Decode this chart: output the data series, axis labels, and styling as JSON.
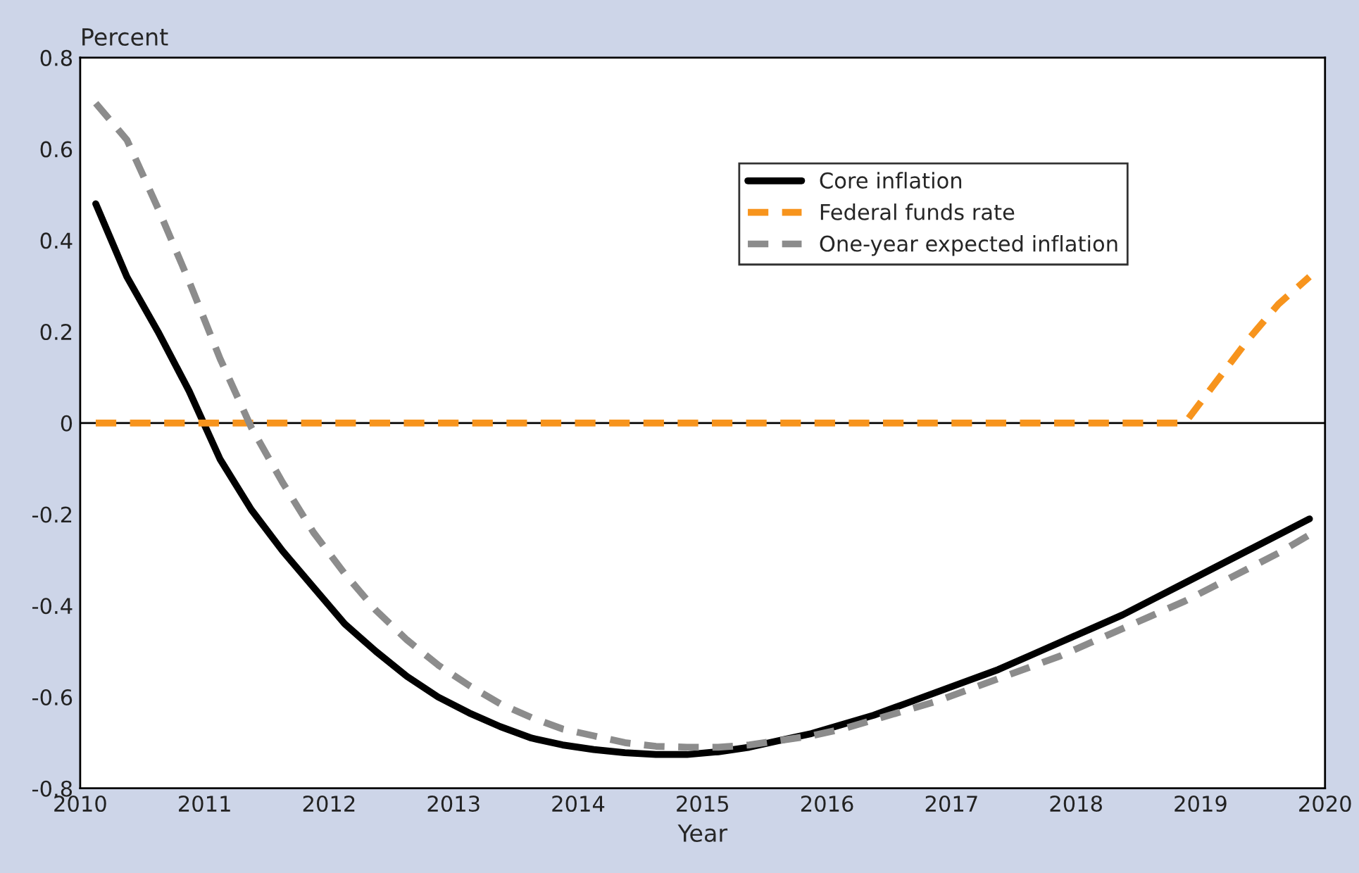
{
  "chart_data": {
    "type": "line",
    "xlabel": "Year",
    "ylabel": "Percent",
    "xlim": [
      2010,
      2020
    ],
    "xticks": [
      2010,
      2011,
      2012,
      2013,
      2014,
      2015,
      2016,
      2017,
      2018,
      2019,
      2020
    ],
    "ylim": [
      -0.8,
      0.8
    ],
    "yticks": [
      -0.8,
      -0.6,
      -0.4,
      -0.2,
      0,
      0.2,
      0.4,
      0.6,
      0.8
    ],
    "grid": false,
    "legend": "top right",
    "ref_lines": [
      {
        "axis": "y",
        "value": 0,
        "color": "#000000",
        "line_style": "solid"
      }
    ],
    "series": [
      {
        "name": "Core inflation",
        "color": "#000000",
        "line_style": "solid",
        "x": [
          2010.125,
          2010.375,
          2010.625,
          2010.875,
          2011.125,
          2011.375,
          2011.625,
          2011.875,
          2012.125,
          2012.375,
          2012.625,
          2012.875,
          2013.125,
          2013.375,
          2013.625,
          2013.875,
          2014.125,
          2014.375,
          2014.625,
          2014.875,
          2015.125,
          2015.375,
          2015.625,
          2015.875,
          2016.125,
          2016.375,
          2016.625,
          2016.875,
          2017.125,
          2017.375,
          2017.625,
          2017.875,
          2018.125,
          2018.375,
          2018.625,
          2018.875,
          2019.125,
          2019.375,
          2019.625,
          2019.875
        ],
        "values": [
          0.48,
          0.32,
          0.2,
          0.07,
          -0.08,
          -0.19,
          -0.28,
          -0.36,
          -0.44,
          -0.5,
          -0.555,
          -0.6,
          -0.635,
          -0.665,
          -0.69,
          -0.705,
          -0.715,
          -0.722,
          -0.726,
          -0.726,
          -0.72,
          -0.71,
          -0.695,
          -0.68,
          -0.66,
          -0.64,
          -0.615,
          -0.59,
          -0.565,
          -0.54,
          -0.51,
          -0.48,
          -0.45,
          -0.42,
          -0.385,
          -0.35,
          -0.315,
          -0.28,
          -0.245,
          -0.21
        ]
      },
      {
        "name": "Federal funds rate",
        "color": "#f7941d",
        "line_style": "dashed",
        "x": [
          2010.125,
          2011.125,
          2012.125,
          2013.125,
          2014.125,
          2015.125,
          2016.125,
          2017.125,
          2018.125,
          2018.875,
          2019.125,
          2019.375,
          2019.625,
          2019.875
        ],
        "values": [
          0,
          0,
          0,
          0,
          0,
          0,
          0,
          0,
          0,
          0,
          0.09,
          0.18,
          0.26,
          0.32
        ]
      },
      {
        "name": "One-year expected inflation",
        "color": "#8c8c8c",
        "line_style": "dashed",
        "x": [
          2010.125,
          2010.375,
          2010.625,
          2010.875,
          2011.125,
          2011.375,
          2011.625,
          2011.875,
          2012.125,
          2012.375,
          2012.625,
          2012.875,
          2013.125,
          2013.375,
          2013.625,
          2013.875,
          2014.125,
          2014.375,
          2014.625,
          2014.875,
          2015.125,
          2015.375,
          2015.625,
          2015.875,
          2016.125,
          2016.375,
          2016.625,
          2016.875,
          2017.125,
          2017.375,
          2017.625,
          2017.875,
          2018.125,
          2018.375,
          2018.625,
          2018.875,
          2019.125,
          2019.375,
          2019.625,
          2019.875
        ],
        "values": [
          0.7,
          0.62,
          0.47,
          0.31,
          0.14,
          -0.01,
          -0.13,
          -0.24,
          -0.33,
          -0.41,
          -0.475,
          -0.53,
          -0.575,
          -0.615,
          -0.645,
          -0.67,
          -0.685,
          -0.7,
          -0.708,
          -0.71,
          -0.71,
          -0.705,
          -0.695,
          -0.685,
          -0.67,
          -0.65,
          -0.63,
          -0.61,
          -0.585,
          -0.56,
          -0.535,
          -0.51,
          -0.48,
          -0.45,
          -0.42,
          -0.39,
          -0.355,
          -0.32,
          -0.285,
          -0.245
        ]
      }
    ]
  }
}
